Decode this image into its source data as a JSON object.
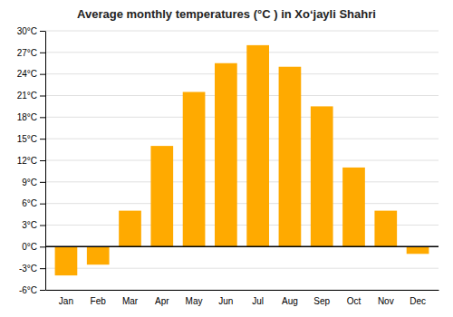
{
  "chart_data": {
    "type": "bar",
    "title": "Average monthly temperatures (°C ) in Xoʻjayli Shahri",
    "categories": [
      "Jan",
      "Feb",
      "Mar",
      "Apr",
      "May",
      "Jun",
      "Jul",
      "Aug",
      "Sep",
      "Oct",
      "Nov",
      "Dec"
    ],
    "values": [
      -4.0,
      -2.5,
      5.0,
      14.0,
      21.5,
      25.5,
      28.0,
      25.0,
      19.5,
      11.0,
      5.0,
      -1.0
    ],
    "color": "#FFAA00",
    "ylim": [
      -6,
      30
    ],
    "yticks": [
      {
        "value": -6,
        "label": "-6°C"
      },
      {
        "value": -3,
        "label": "-3°C"
      },
      {
        "value": 0,
        "label": "0°C"
      },
      {
        "value": 3,
        "label": "3°C"
      },
      {
        "value": 6,
        "label": "6°C"
      },
      {
        "value": 9,
        "label": "9°C"
      },
      {
        "value": 12,
        "label": "12°C"
      },
      {
        "value": 15,
        "label": "15°C"
      },
      {
        "value": 18,
        "label": "18°C"
      },
      {
        "value": 21,
        "label": "21°C"
      },
      {
        "value": 24,
        "label": "24°C"
      },
      {
        "value": 27,
        "label": "27°C"
      },
      {
        "value": 30,
        "label": "30°C"
      }
    ],
    "grid": true
  }
}
